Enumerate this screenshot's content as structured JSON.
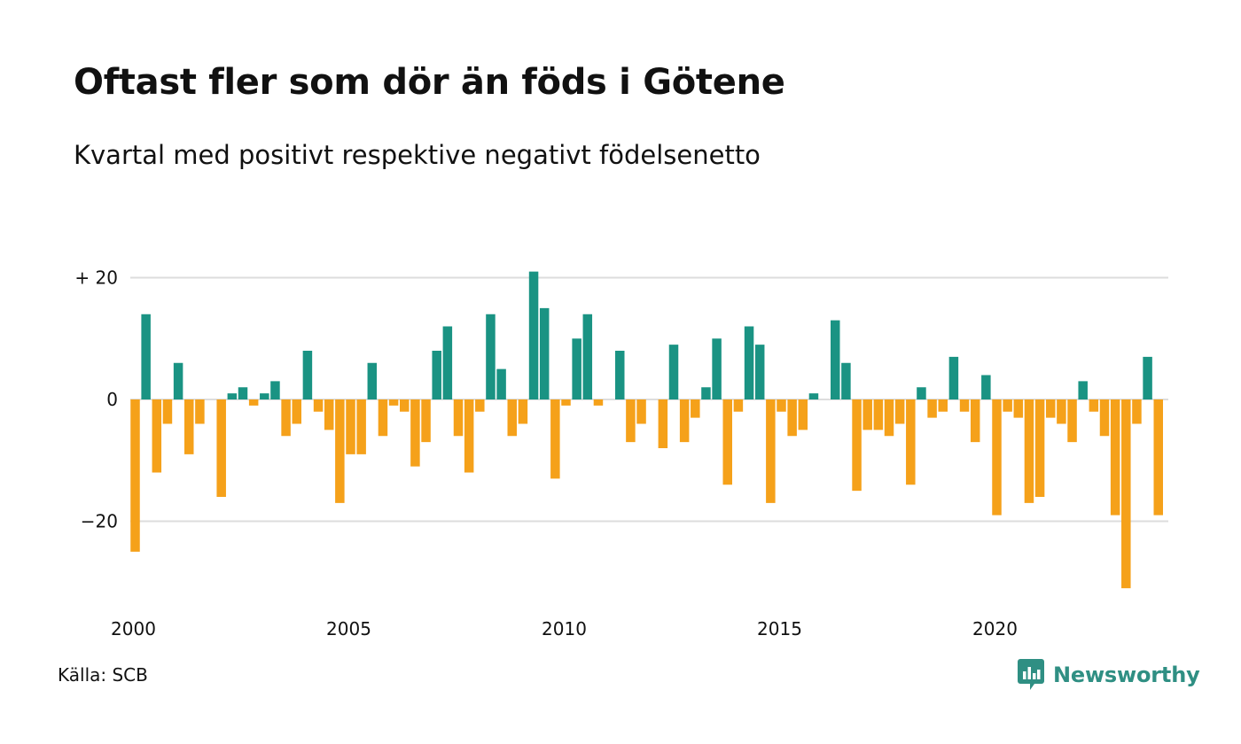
{
  "header": {
    "title": "Oftast fler som dör än föds i Götene",
    "subtitle": "Kvartal med positivt respektive negativt födelsenetto"
  },
  "footer": {
    "source": "Källa: SCB",
    "brand": "Newsworthy",
    "brand_icon": "newsworthy-logo-icon"
  },
  "colors": {
    "positive": "#1a9383",
    "negative": "#f5a11a",
    "grid": "#dddddd",
    "brand": "#2f8f83"
  },
  "chart_data": {
    "type": "bar",
    "x_start": 2000.0,
    "x_step": 0.25,
    "xticks": [
      2000,
      2005,
      2010,
      2015,
      2020
    ],
    "yticks": [
      20,
      0,
      -20
    ],
    "ytick_labels": [
      "+ 20",
      "0",
      "−20"
    ],
    "ylim": [
      -32,
      22
    ],
    "grid": "horizontal",
    "values": [
      -25,
      14,
      -12,
      -4,
      6,
      -9,
      -4,
      0,
      -16,
      1,
      2,
      -1,
      1,
      3,
      -6,
      -4,
      8,
      -2,
      -5,
      -17,
      -9,
      -9,
      6,
      -6,
      -1,
      -2,
      -11,
      -7,
      8,
      12,
      -6,
      -12,
      -2,
      14,
      5,
      -6,
      -4,
      21,
      15,
      -13,
      -1,
      10,
      14,
      -1,
      0,
      8,
      -7,
      -4,
      0,
      -8,
      9,
      -7,
      -3,
      2,
      10,
      -14,
      -2,
      12,
      9,
      -17,
      -2,
      -6,
      -5,
      1,
      0,
      13,
      6,
      -15,
      -5,
      -5,
      -6,
      -4,
      -14,
      2,
      -3,
      -2,
      7,
      -2,
      -7,
      4,
      -19,
      -2,
      -3,
      -17,
      -16,
      -3,
      -4,
      -7,
      3,
      -2,
      -6,
      -19,
      -31,
      -4,
      7,
      -19
    ]
  }
}
